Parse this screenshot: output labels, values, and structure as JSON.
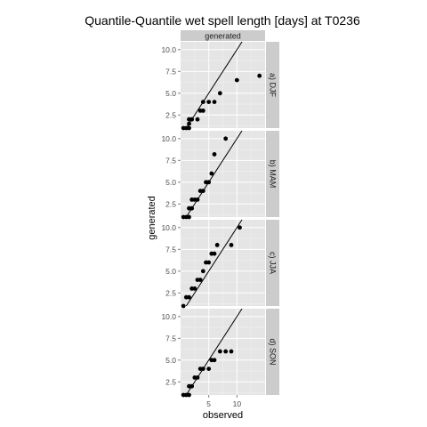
{
  "chart_data": {
    "type": "scatter",
    "title": "Quantile-Quantile wet spell length [days] at T0236",
    "xlabel": "observed",
    "ylabel": "generated",
    "column_strip": "generated",
    "xlim": [
      0,
      15
    ],
    "ylim": [
      1,
      10.9
    ],
    "x_ticks": [
      5,
      10
    ],
    "x_tick_labels": [
      "5",
      "10"
    ],
    "y_ticks": [
      2.5,
      5.0,
      7.5,
      10.0
    ],
    "y_tick_labels": [
      "2.5",
      "5.0",
      "7.5",
      "10.0"
    ],
    "reference_line": "y = x",
    "grid": true,
    "panels": [
      {
        "label": "a) DJF",
        "points": [
          [
            0.5,
            1
          ],
          [
            1,
            1
          ],
          [
            1.5,
            1
          ],
          [
            1.5,
            1.5
          ],
          [
            1.5,
            2
          ],
          [
            2,
            2
          ],
          [
            3,
            2
          ],
          [
            3.5,
            3
          ],
          [
            4,
            3
          ],
          [
            4,
            4
          ],
          [
            5,
            4
          ],
          [
            6,
            4
          ],
          [
            7,
            5
          ],
          [
            10,
            6.5
          ],
          [
            14,
            7
          ]
        ]
      },
      {
        "label": "b) MAM",
        "points": [
          [
            0.5,
            1
          ],
          [
            1,
            1
          ],
          [
            1.5,
            1
          ],
          [
            1.5,
            2
          ],
          [
            2,
            2
          ],
          [
            2,
            3
          ],
          [
            2.5,
            3
          ],
          [
            3,
            3
          ],
          [
            3.5,
            4
          ],
          [
            4,
            4
          ],
          [
            4.5,
            5
          ],
          [
            5,
            5
          ],
          [
            5.5,
            6
          ],
          [
            6,
            8.2
          ],
          [
            8,
            10
          ]
        ]
      },
      {
        "label": "c) JJA",
        "points": [
          [
            0.5,
            1
          ],
          [
            1,
            2
          ],
          [
            1.5,
            2
          ],
          [
            2,
            3
          ],
          [
            2.5,
            3
          ],
          [
            3,
            4
          ],
          [
            3.5,
            4
          ],
          [
            4,
            5
          ],
          [
            4.5,
            6
          ],
          [
            5,
            6
          ],
          [
            5.5,
            7
          ],
          [
            6,
            7
          ],
          [
            6.5,
            8
          ],
          [
            9,
            8
          ],
          [
            10.5,
            10
          ]
        ]
      },
      {
        "label": "d) SON",
        "points": [
          [
            0.5,
            1
          ],
          [
            1,
            1
          ],
          [
            1.5,
            1
          ],
          [
            1.5,
            2
          ],
          [
            2,
            2
          ],
          [
            2.5,
            3
          ],
          [
            3,
            3
          ],
          [
            3.5,
            4
          ],
          [
            4,
            4
          ],
          [
            5,
            4
          ],
          [
            5.5,
            5
          ],
          [
            6,
            5
          ],
          [
            7,
            6
          ],
          [
            8,
            6
          ],
          [
            9,
            6
          ]
        ]
      }
    ]
  }
}
